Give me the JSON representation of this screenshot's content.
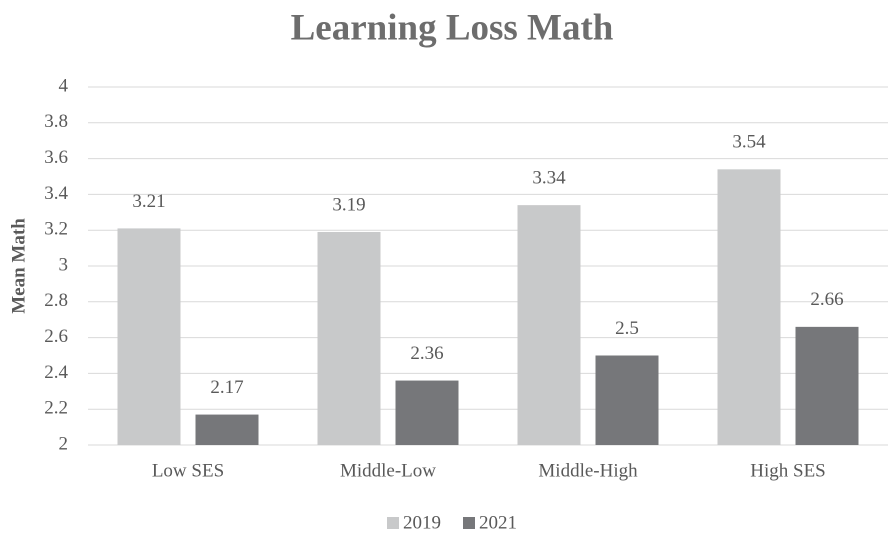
{
  "chart_data": {
    "type": "bar",
    "title": "Learning Loss Math",
    "y_label": "Mean Math",
    "categories": [
      "Low SES",
      "Middle-Low",
      "Middle-High",
      "High SES"
    ],
    "series": [
      {
        "name": "2019",
        "color": "#c8c9ca",
        "values": [
          3.21,
          3.19,
          3.34,
          3.54
        ]
      },
      {
        "name": "2021",
        "color": "#76777a",
        "values": [
          2.17,
          2.36,
          2.5,
          2.66
        ]
      }
    ],
    "ylim": [
      2,
      4
    ],
    "yticks": [
      2,
      2.2,
      2.4,
      2.6,
      2.8,
      3,
      3.2,
      3.4,
      3.6,
      3.8,
      4
    ],
    "grid": true,
    "legend": "bottom"
  }
}
